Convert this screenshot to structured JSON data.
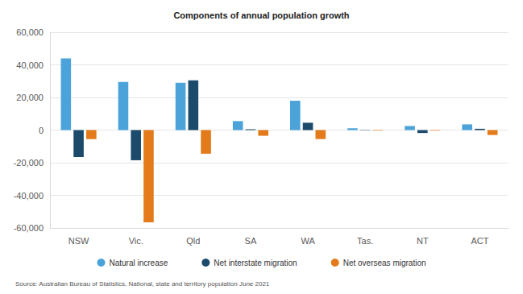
{
  "chart_data": {
    "type": "bar",
    "title": "Components of annual population growth",
    "source": "Source: Australian Bureau of Statistics, National, state and territory population June 2021",
    "categories": [
      "NSW",
      "Vic.",
      "Qld",
      "SA",
      "WA",
      "Tas.",
      "NT",
      "ACT"
    ],
    "series": [
      {
        "name": "Natural increase",
        "color": "#4ba3d9",
        "values": [
          44000,
          29500,
          29000,
          5500,
          18000,
          1100,
          2500,
          3500
        ]
      },
      {
        "name": "Net interstate migration",
        "color": "#1b4a6b",
        "values": [
          -16500,
          -18500,
          30500,
          500,
          4500,
          200,
          -1800,
          800
        ]
      },
      {
        "name": "Net overseas migration",
        "color": "#e37b1a",
        "values": [
          -5500,
          -56500,
          -14500,
          -3500,
          -5500,
          -300,
          -300,
          -3000
        ]
      }
    ],
    "ylim": [
      -60000,
      60000
    ],
    "yticks": [
      {
        "value": -60000,
        "label": "-60,000"
      },
      {
        "value": -40000,
        "label": "-40,000"
      },
      {
        "value": -20000,
        "label": "-20,000"
      },
      0,
      {
        "value": 20000,
        "label": "20,000"
      },
      {
        "value": 40000,
        "label": "40,000"
      },
      {
        "value": 60000,
        "label": "60,000"
      }
    ],
    "grid": true,
    "legend": "bottom"
  }
}
